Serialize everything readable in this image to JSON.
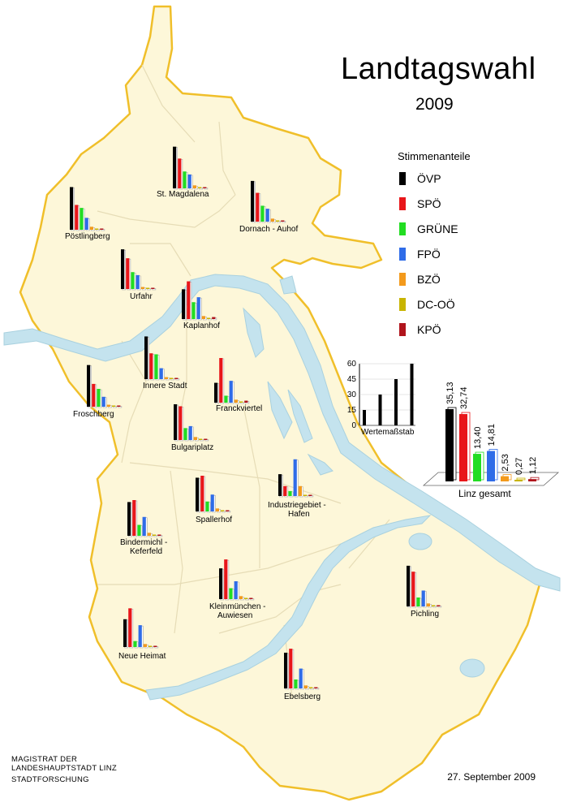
{
  "header": {
    "title": "Landtagswahl",
    "year": "2009"
  },
  "legend": {
    "title": "Stimmenanteile",
    "items": [
      {
        "party": "ÖVP",
        "color": "#000000"
      },
      {
        "party": "SPÖ",
        "color": "#e8161a"
      },
      {
        "party": "GRÜNE",
        "color": "#22dd22"
      },
      {
        "party": "FPÖ",
        "color": "#2f6ce8"
      },
      {
        "party": "BZÖ",
        "color": "#f39a1c"
      },
      {
        "party": "DC-OÖ",
        "color": "#c8b400"
      },
      {
        "party": "KPÖ",
        "color": "#b0141c"
      }
    ]
  },
  "chart_data": {
    "type": "bar",
    "scale": {
      "label": "Wertemaßstab",
      "ticks": [
        "0",
        "15",
        "30",
        "45",
        "60"
      ],
      "values": [
        15,
        30,
        45,
        60
      ]
    },
    "total": {
      "label": "Linz gesamt",
      "categories": [
        "ÖVP",
        "SPÖ",
        "GRÜNE",
        "FPÖ",
        "BZÖ",
        "DC-OÖ",
        "KPÖ"
      ],
      "values": [
        35.13,
        32.74,
        13.4,
        14.81,
        2.53,
        0.27,
        1.12
      ],
      "value_labels": [
        "35,13",
        "32,74",
        "13,40",
        "14,81",
        "2,53",
        "0,27",
        "1,12"
      ]
    },
    "districts": [
      {
        "name": "St. Magdalena",
        "values": [
          42,
          30,
          17,
          14,
          3,
          1,
          1
        ]
      },
      {
        "name": "Dornach - Auhof",
        "values": [
          41,
          29,
          16,
          13,
          3,
          1,
          1
        ]
      },
      {
        "name": "Pöstlingberg",
        "values": [
          43,
          25,
          22,
          12,
          3,
          1,
          1
        ]
      },
      {
        "name": "Urfahr",
        "values": [
          40,
          31,
          17,
          14,
          2,
          1,
          1
        ]
      },
      {
        "name": "Kaplanhof",
        "values": [
          30,
          38,
          17,
          22,
          3,
          1,
          2
        ]
      },
      {
        "name": "Innere Stadt",
        "values": [
          43,
          26,
          25,
          11,
          2,
          1,
          1
        ]
      },
      {
        "name": "Franckviertel",
        "values": [
          20,
          45,
          7,
          22,
          3,
          1,
          2
        ]
      },
      {
        "name": "Froschberg",
        "values": [
          42,
          23,
          18,
          10,
          2,
          1,
          1
        ]
      },
      {
        "name": "Bulgariplatz",
        "values": [
          36,
          34,
          12,
          14,
          3,
          1,
          1
        ]
      },
      {
        "name": "Industriegebiet - Hafen",
        "values": [
          22,
          10,
          5,
          37,
          10,
          0,
          0
        ]
      },
      {
        "name": "Spallerhof",
        "values": [
          34,
          36,
          10,
          17,
          3,
          1,
          1
        ]
      },
      {
        "name": "Bindermichl - Keferfeld",
        "values": [
          34,
          36,
          11,
          19,
          3,
          1,
          1
        ]
      },
      {
        "name": "Kleinmünchen - Auwiesen",
        "values": [
          31,
          40,
          11,
          18,
          3,
          1,
          1
        ]
      },
      {
        "name": "Pichling",
        "values": [
          41,
          35,
          9,
          16,
          3,
          1,
          1
        ]
      },
      {
        "name": "Neue Heimat",
        "values": [
          28,
          39,
          6,
          22,
          3,
          1,
          1
        ]
      },
      {
        "name": "Ebelsberg",
        "values": [
          36,
          40,
          9,
          20,
          3,
          1,
          1
        ]
      }
    ]
  },
  "labels": {
    "districts": [
      "St. Magdalena",
      "Dornach - Auhof",
      "Pöstlingberg",
      "Urfahr",
      "Kaplanhof",
      "Innere Stadt",
      "Franckviertel",
      "Froschberg",
      "Bulgariplatz",
      "Industriegebiet -",
      "Hafen",
      "Spallerhof",
      "Bindermichl -",
      "Keferfeld",
      "Kleinmünchen -",
      "Auwiesen",
      "Pichling",
      "Neue Heimat",
      "Ebelsberg"
    ]
  },
  "footer": {
    "line1": "MAGISTRAT DER",
    "line2": "LANDESHAUPTSTADT LINZ",
    "line3": "STADTFORSCHUNG",
    "date": "27. September 2009"
  }
}
